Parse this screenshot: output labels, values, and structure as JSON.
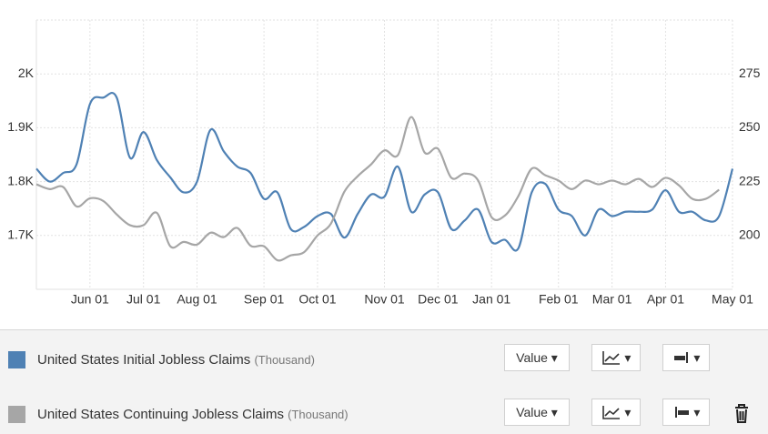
{
  "chart_data": {
    "type": "line",
    "categories": [
      null,
      null,
      null,
      null,
      "Jun 01",
      null,
      null,
      null,
      "Jul 01",
      null,
      null,
      null,
      "Aug 01",
      null,
      null,
      null,
      null,
      "Sep 01",
      null,
      null,
      null,
      "Oct 01",
      null,
      null,
      null,
      null,
      "Nov 01",
      null,
      null,
      null,
      "Dec 01",
      null,
      null,
      null,
      "Jan 01",
      null,
      null,
      null,
      null,
      "Feb 01",
      null,
      null,
      null,
      "Mar 01",
      null,
      null,
      null,
      "Apr 01",
      null,
      null,
      null,
      null,
      "May 01"
    ],
    "series": [
      {
        "name": "United States Initial Jobless Claims",
        "unit": "(Thousand)",
        "mode": "Value",
        "color": "#4f81b4",
        "axis": "y2",
        "values": [
          231,
          225,
          229,
          233,
          261,
          264,
          264,
          236,
          248,
          235,
          227,
          220,
          225,
          249,
          239,
          232,
          229,
          217,
          220,
          203,
          204,
          209,
          210,
          199,
          210,
          219,
          218,
          232,
          211,
          219,
          220,
          203,
          207,
          212,
          197,
          198,
          194,
          220,
          224,
          212,
          209,
          200,
          212,
          209,
          211,
          211,
          212,
          221,
          211,
          211,
          207,
          209,
          231
        ]
      },
      {
        "name": "United States Continuing Jobless Claims",
        "unit": "(Thousand)",
        "mode": "Value",
        "color": "#a6a6a6",
        "values": [
          1795,
          1786,
          1790,
          1754,
          1769,
          1764,
          1739,
          1719,
          1719,
          1742,
          1680,
          1688,
          1683,
          1705,
          1697,
          1714,
          1681,
          1680,
          1654,
          1663,
          1669,
          1700,
          1722,
          1781,
          1810,
          1832,
          1858,
          1849,
          1920,
          1854,
          1861,
          1807,
          1815,
          1802,
          1734,
          1737,
          1773,
          1824,
          1812,
          1802,
          1786,
          1802,
          1795,
          1802,
          1795,
          1805,
          1790,
          1807,
          1793,
          1768,
          1768,
          1785,
          null
        ]
      }
    ],
    "ylim": [
      1600,
      2100
    ],
    "yticks": [
      {
        "value": 1700,
        "label": "1.7K"
      },
      {
        "value": 1800,
        "label": "1.8K"
      },
      {
        "value": 1900,
        "label": "1.9K"
      },
      {
        "value": 2000,
        "label": "2K"
      }
    ],
    "y2lim": [
      175,
      300
    ],
    "y2ticks": [
      200,
      225,
      250,
      275
    ],
    "grid": true
  }
}
